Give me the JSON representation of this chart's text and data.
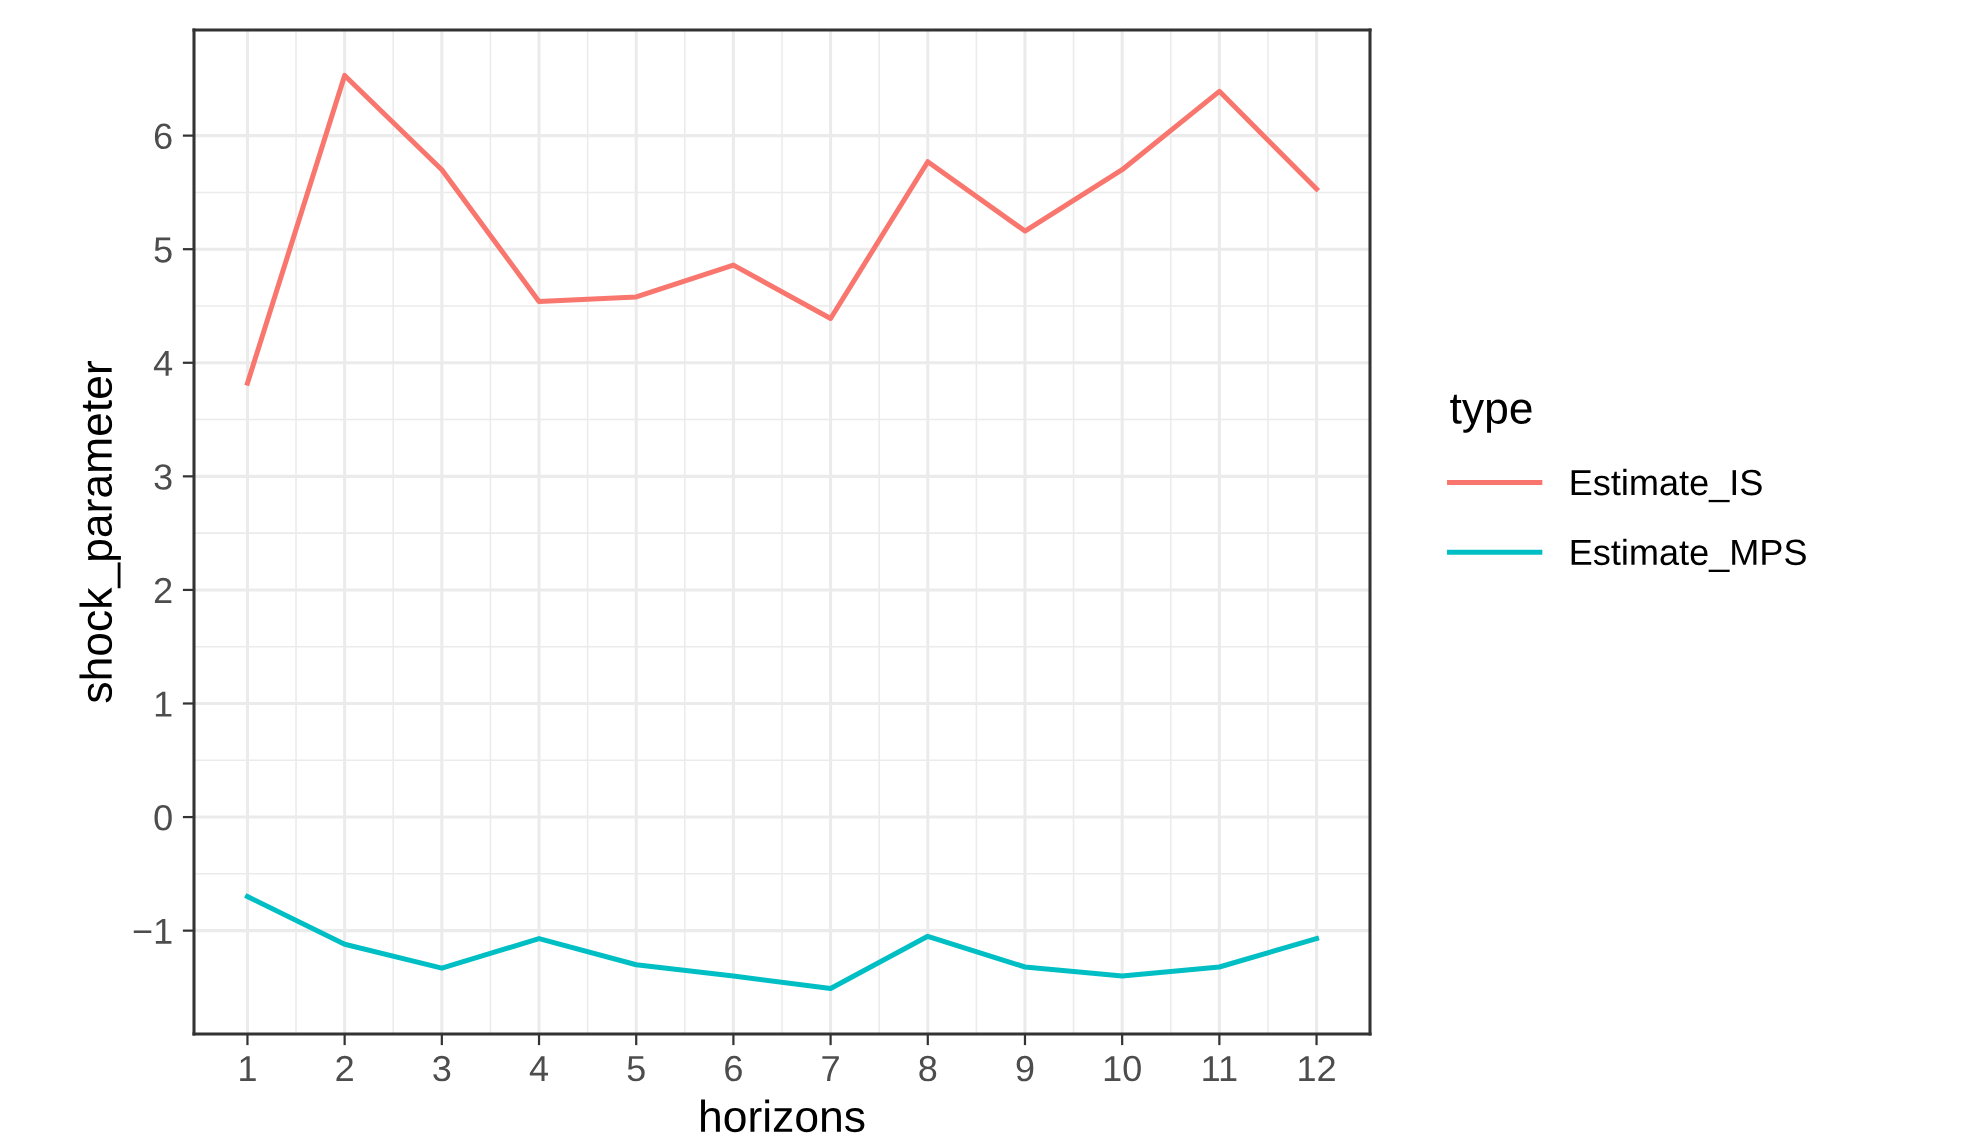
{
  "chart_data": {
    "type": "line",
    "xlabel": "horizons",
    "ylabel": "shock_parameter",
    "legend_title": "type",
    "x": [
      1,
      2,
      3,
      4,
      5,
      6,
      7,
      8,
      9,
      10,
      11,
      12
    ],
    "series": [
      {
        "name": "Estimate_IS",
        "color": "#f8766d",
        "values": [
          3.82,
          6.53,
          5.7,
          4.54,
          4.58,
          4.86,
          4.39,
          5.77,
          5.16,
          5.7,
          6.39,
          5.53
        ]
      },
      {
        "name": "Estimate_MPS",
        "color": "#00bfc4",
        "values": [
          -0.7,
          -1.12,
          -1.33,
          -1.07,
          -1.3,
          -1.4,
          -1.51,
          -1.05,
          -1.32,
          -1.4,
          -1.32,
          -1.07
        ]
      }
    ],
    "xlim": [
      0.45,
      12.55
    ],
    "xticks": [
      1,
      2,
      3,
      4,
      5,
      6,
      7,
      8,
      9,
      10,
      11,
      12
    ],
    "ylim": [
      -1.91,
      6.93
    ],
    "yticks": [
      {
        "value": -1,
        "label": "−1"
      },
      0,
      1,
      2,
      3,
      4,
      5,
      6
    ],
    "grid": true,
    "legend": "right",
    "marker": "none",
    "line_style": "solid"
  }
}
